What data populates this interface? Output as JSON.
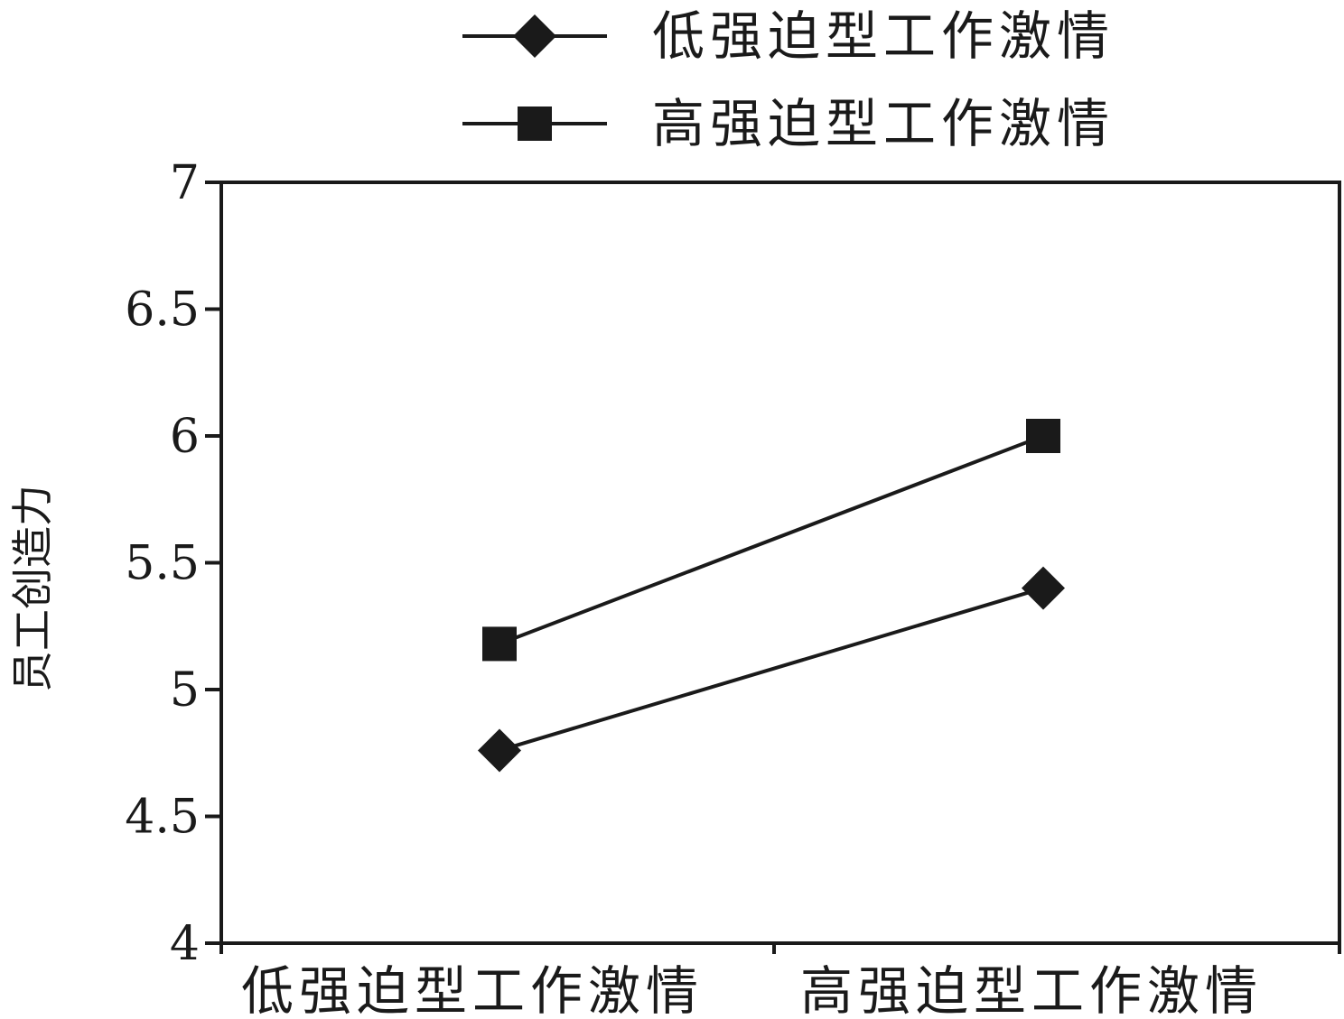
{
  "chart_data": {
    "type": "line",
    "title": "",
    "xlabel": "",
    "ylabel": "员工创造力",
    "categories": [
      "低强迫型工作激情",
      "高强迫型工作激情"
    ],
    "ylim": [
      4,
      7
    ],
    "yticks": [
      "4",
      "4.5",
      "5",
      "5.5",
      "6",
      "6.5",
      "7"
    ],
    "grid": false,
    "legend_position": "top-center",
    "series": [
      {
        "name": "低强迫型工作激情",
        "marker": "diamond",
        "values": [
          4.76,
          5.4
        ]
      },
      {
        "name": "高强迫型工作激情",
        "marker": "square",
        "values": [
          5.18,
          6.0
        ]
      }
    ],
    "colors": {
      "line": "#1a1a1a",
      "marker": "#1a1a1a",
      "axis": "#1a1a1a",
      "background": "#ffffff"
    }
  }
}
